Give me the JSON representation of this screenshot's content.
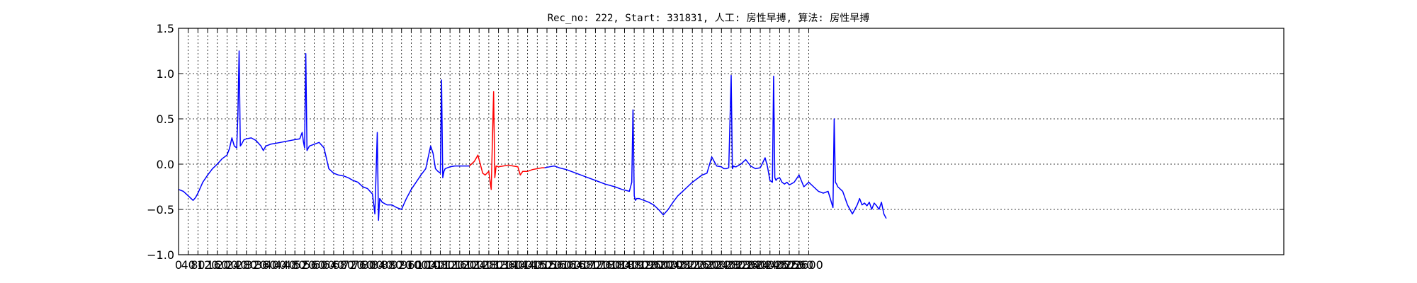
{
  "chart_data": {
    "type": "line",
    "title": "Rec_no: 222, Start: 331831, 人工: 房性早搏, 算法: 房性早搏",
    "xlabel": "",
    "ylabel": "",
    "xlim": [
      0,
      4560
    ],
    "ylim": [
      -1.0,
      1.5
    ],
    "grid": true,
    "yticks": [
      -1.0,
      -0.5,
      0.0,
      0.5,
      1.0,
      1.5
    ],
    "ytick_labels": [
      "−1.0",
      "−0.5",
      "0.0",
      "0.5",
      "1.0",
      "1.5"
    ],
    "xticks": [
      0,
      40,
      80,
      120,
      160,
      200,
      240,
      280,
      320,
      360,
      400,
      440,
      480,
      520,
      560,
      600,
      640,
      680,
      720,
      760,
      800,
      840,
      880,
      920,
      960,
      1000,
      1040,
      1080,
      1120,
      1160,
      1200,
      1240,
      1280,
      1320,
      1360,
      1400,
      1440,
      1480,
      1520,
      1560,
      1600,
      1640,
      1680,
      1720,
      1760,
      1800,
      1840,
      1880,
      1920,
      1960,
      2000,
      2040,
      2080,
      2120,
      2160,
      2200,
      2240,
      2280,
      2320,
      2360,
      2400,
      2440,
      2480,
      2520,
      2560,
      2600
    ],
    "xtick_labels": [
      "0",
      "40",
      "80",
      "120",
      "160",
      "200",
      "240",
      "280",
      "320",
      "360",
      "400",
      "440",
      "480",
      "520",
      "560",
      "600",
      "640",
      "680",
      "720",
      "760",
      "800",
      "840",
      "880",
      "920",
      "960",
      "1000",
      "1040",
      "1080",
      "1120",
      "1160",
      "1200",
      "1240",
      "1280",
      "1320",
      "1360",
      "1400",
      "1440",
      "1480",
      "1520",
      "1560",
      "1600",
      "1640",
      "1680",
      "1720",
      "1760",
      "1800",
      "1840",
      "1880",
      "1920",
      "1960",
      "2000",
      "2040",
      "2080",
      "2120",
      "2160",
      "2200",
      "2240",
      "2280",
      "2320",
      "2360",
      "2400",
      "2440",
      "2480",
      "2520",
      "2560",
      "2600"
    ],
    "series": [
      {
        "color": "#0000ff",
        "x": [
          0,
          20,
          40,
          60,
          70,
          80,
          100,
          120,
          140,
          160,
          180,
          200,
          210,
          220,
          230,
          240,
          245,
          250,
          255,
          260,
          270,
          280,
          300,
          320,
          340,
          350,
          360,
          380,
          400,
          420,
          440,
          460,
          480,
          500,
          510,
          515,
          520,
          525,
          530,
          540,
          560,
          580,
          600,
          620,
          640,
          660,
          680,
          700,
          720,
          740,
          760,
          780,
          800,
          810,
          820,
          825,
          830,
          835,
          840,
          860,
          880,
          900,
          920,
          940,
          960,
          980,
          1000,
          1020,
          1040,
          1050,
          1060,
          1070,
          1080,
          1085,
          1090,
          1095,
          1100,
          1110,
          1120,
          1140,
          1160,
          1180,
          1200
        ],
        "y": [
          -0.28,
          -0.3,
          -0.35,
          -0.4,
          -0.37,
          -0.32,
          -0.2,
          -0.12,
          -0.05,
          0.0,
          0.06,
          0.1,
          0.17,
          0.29,
          0.2,
          0.18,
          0.55,
          1.25,
          0.2,
          0.22,
          0.27,
          0.28,
          0.29,
          0.26,
          0.2,
          0.15,
          0.2,
          0.22,
          0.23,
          0.24,
          0.25,
          0.26,
          0.27,
          0.28,
          0.35,
          0.25,
          0.18,
          1.22,
          0.15,
          0.2,
          0.22,
          0.24,
          0.18,
          -0.05,
          -0.1,
          -0.12,
          -0.13,
          -0.15,
          -0.18,
          -0.2,
          -0.25,
          -0.27,
          -0.33,
          -0.55,
          0.35,
          -0.62,
          -0.38,
          -0.4,
          -0.42,
          -0.45,
          -0.45,
          -0.48,
          -0.5,
          -0.38,
          -0.28,
          -0.2,
          -0.12,
          -0.05,
          0.2,
          0.12,
          -0.05,
          -0.08,
          -0.1,
          0.93,
          -0.15,
          -0.08,
          -0.05,
          -0.04,
          -0.03,
          -0.02,
          -0.02,
          -0.02,
          -0.02
        ]
      },
      {
        "color": "#ff0000",
        "x": [
          1200,
          1220,
          1235,
          1245,
          1255,
          1265,
          1280,
          1290,
          1300,
          1305,
          1310,
          1320,
          1340,
          1360,
          1380,
          1400,
          1410,
          1420,
          1440,
          1460,
          1480,
          1500,
          1510
        ],
        "y": [
          -0.02,
          0.03,
          0.1,
          0.0,
          -0.1,
          -0.12,
          -0.08,
          -0.28,
          0.8,
          -0.15,
          -0.02,
          -0.03,
          -0.02,
          -0.01,
          -0.02,
          -0.03,
          -0.12,
          -0.08,
          -0.08,
          -0.06,
          -0.05,
          -0.04,
          -0.04
        ]
      },
      {
        "color": "#0000ff",
        "x": [
          1510,
          1530,
          1550,
          1570,
          1600,
          1640,
          1680,
          1720,
          1760,
          1800,
          1830,
          1860,
          1870,
          1875,
          1880,
          1885,
          1890,
          1900,
          1920,
          1940,
          1960,
          1980,
          2000,
          2020,
          2040,
          2060,
          2080,
          2100,
          2120,
          2140,
          2160,
          2180,
          2200,
          2220,
          2240,
          2250,
          2260,
          2270,
          2280,
          2285,
          2290,
          2295,
          2300,
          2320,
          2340,
          2360,
          2380,
          2400,
          2420,
          2430,
          2440,
          2450,
          2455,
          2460,
          2465,
          2470,
          2480,
          2490,
          2500,
          2510,
          2520,
          2540,
          2560,
          2580,
          2600,
          2620,
          2640,
          2660,
          2680,
          2700,
          2705,
          2710,
          2715,
          2720,
          2740,
          2760,
          2780,
          2800,
          2810,
          2820,
          2830,
          2840,
          2850,
          2860,
          2870,
          2880,
          2890,
          2900,
          2910,
          2920
        ],
        "y": [
          -0.04,
          -0.03,
          -0.02,
          -0.04,
          -0.06,
          -0.1,
          -0.14,
          -0.18,
          -0.22,
          -0.25,
          -0.28,
          -0.3,
          -0.2,
          0.6,
          -0.35,
          -0.4,
          -0.38,
          -0.38,
          -0.4,
          -0.42,
          -0.45,
          -0.5,
          -0.56,
          -0.5,
          -0.42,
          -0.35,
          -0.3,
          -0.25,
          -0.2,
          -0.16,
          -0.12,
          -0.1,
          0.08,
          -0.02,
          -0.03,
          -0.05,
          -0.05,
          -0.04,
          0.98,
          -0.05,
          -0.02,
          -0.03,
          -0.03,
          0.0,
          0.05,
          -0.02,
          -0.05,
          -0.04,
          0.07,
          -0.03,
          -0.18,
          -0.2,
          0.97,
          -0.15,
          -0.18,
          -0.16,
          -0.15,
          -0.2,
          -0.22,
          -0.2,
          -0.23,
          -0.2,
          -0.12,
          -0.25,
          -0.2,
          -0.25,
          -0.3,
          -0.32,
          -0.3,
          -0.48,
          0.5,
          -0.2,
          -0.22,
          -0.25,
          -0.3,
          -0.45,
          -0.55,
          -0.45,
          -0.38,
          -0.45,
          -0.43,
          -0.46,
          -0.42,
          -0.5,
          -0.43,
          -0.46,
          -0.5,
          -0.42,
          -0.55,
          -0.6
        ]
      }
    ]
  }
}
